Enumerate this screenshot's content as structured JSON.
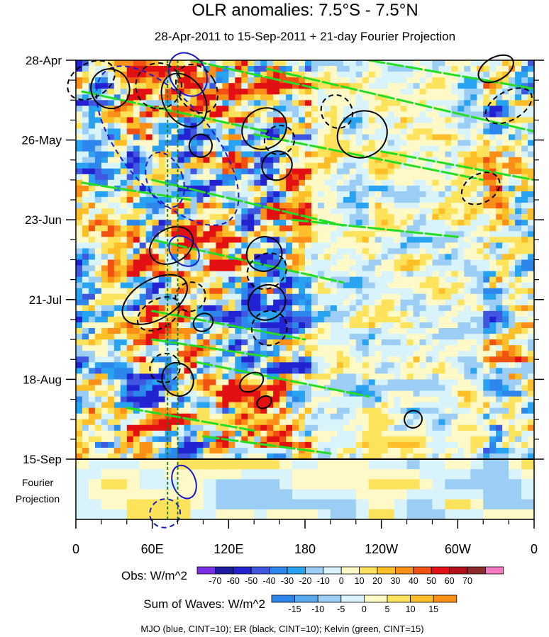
{
  "chart_data": {
    "type": "heatmap",
    "title": "OLR anomalies: 7.5°S - 7.5°N",
    "subtitle": "28-Apr-2011 to 15-Sep-2011 + 21-day Fourier Projection",
    "y_tick_labels": [
      "28-Apr",
      "26-May",
      "23-Jun",
      "21-Jul",
      "18-Aug",
      "15-Sep"
    ],
    "y_days_from_start": [
      0,
      28,
      56,
      84,
      112,
      140
    ],
    "projection_days": 21,
    "projection_label": [
      "Fourier",
      "Projection"
    ],
    "x_tick_labels": [
      "0",
      "60E",
      "120E",
      "180",
      "120W",
      "60W",
      "0"
    ],
    "x_longitudes": [
      0,
      60,
      120,
      180,
      240,
      300,
      360
    ],
    "xlim": [
      0,
      360
    ],
    "reference_longitudes": [
      72,
      80
    ],
    "obs_colorbar": {
      "label": "Obs: W/m^2",
      "levels": [
        "-70",
        "-60",
        "-50",
        "-40",
        "-30",
        "-20",
        "-10",
        "0",
        "10",
        "20",
        "30",
        "40",
        "50",
        "60",
        "70"
      ],
      "colors": [
        "#7b2ee6",
        "#1d1ba0",
        "#2222d2",
        "#3f57e0",
        "#2d86ec",
        "#27a3f1",
        "#9ccdf4",
        "#d8f3fa",
        "#fff9c8",
        "#fde35c",
        "#fdbe28",
        "#fb8f18",
        "#f25111",
        "#e31013",
        "#b3101a",
        "#8c2b2b",
        "#f37ac0"
      ]
    },
    "waves_colorbar": {
      "label": "Sum of Waves: W/m^2",
      "levels": [
        "-15",
        "-10",
        "-5",
        "0",
        "5",
        "10",
        "15"
      ],
      "colors": [
        "#2d86ec",
        "#5aaaf0",
        "#9ccdf4",
        "#d8f3fa",
        "#fff9c8",
        "#fde35c",
        "#fdbe28",
        "#fb8f18"
      ]
    },
    "footnote": "MJO (blue, CINT=10); ER (black, CINT=10); Kelvin (green, CINT=15)",
    "series": [
      {
        "name": "MJO",
        "color": "#1a1acc",
        "contour_interval": 10
      },
      {
        "name": "ER",
        "color": "#000000",
        "contour_interval": 10
      },
      {
        "name": "Kelvin",
        "color": "#22dd22",
        "contour_interval": 15
      }
    ],
    "contours": [
      {
        "wave": "MJO",
        "sign": "neg",
        "lon": 72,
        "day": 30,
        "rlon": 35,
        "rday": 34,
        "angle": -10
      },
      {
        "wave": "MJO",
        "sign": "pos",
        "lon": 88,
        "day": 5,
        "rlon": 14,
        "rday": 8,
        "angle": 0
      },
      {
        "wave": "MJO",
        "sign": "pos",
        "lon": 85,
        "day": 67,
        "rlon": 10,
        "rday": 6,
        "angle": -15
      },
      {
        "wave": "MJO",
        "sign": "neg",
        "lon": 70,
        "day": 42,
        "rlon": 14,
        "rday": 10,
        "angle": 10
      },
      {
        "wave": "MJO",
        "sign": "pos",
        "lon": 85,
        "day": 148,
        "rlon": 9,
        "rday": 6,
        "angle": 10
      },
      {
        "wave": "MJO",
        "sign": "neg",
        "lon": 70,
        "day": 159,
        "rlon": 12,
        "rday": 5,
        "angle": 15
      },
      {
        "wave": "ER",
        "sign": "neg",
        "lon": 12,
        "day": 7,
        "rlon": 20,
        "rday": 6,
        "angle": 0
      },
      {
        "wave": "ER",
        "sign": "pos",
        "lon": 27,
        "day": 10,
        "rlon": 15,
        "rday": 7,
        "angle": 0
      },
      {
        "wave": "ER",
        "sign": "neg",
        "lon": 65,
        "day": 9,
        "rlon": 18,
        "rday": 8,
        "angle": 0
      },
      {
        "wave": "ER",
        "sign": "pos",
        "lon": 85,
        "day": 14,
        "rlon": 16,
        "rday": 10,
        "angle": 0
      },
      {
        "wave": "ER",
        "sign": "neg",
        "lon": 95,
        "day": 10,
        "rlon": 15,
        "rday": 9,
        "angle": 0
      },
      {
        "wave": "ER",
        "sign": "pos",
        "lon": 148,
        "day": 24,
        "rlon": 18,
        "rday": 7,
        "angle": 0
      },
      {
        "wave": "ER",
        "sign": "neg",
        "lon": 160,
        "day": 28,
        "rlon": 12,
        "rday": 5,
        "angle": 0
      },
      {
        "wave": "ER",
        "sign": "pos",
        "lon": 158,
        "day": 37,
        "rlon": 12,
        "rday": 5,
        "angle": 0
      },
      {
        "wave": "ER",
        "sign": "neg",
        "lon": 205,
        "day": 18,
        "rlon": 12,
        "rday": 6,
        "angle": 0
      },
      {
        "wave": "ER",
        "sign": "pos",
        "lon": 225,
        "day": 26,
        "rlon": 20,
        "rday": 8,
        "angle": 0
      },
      {
        "wave": "ER",
        "sign": "neg",
        "lon": 340,
        "day": 16,
        "rlon": 20,
        "rday": 5,
        "angle": 0
      },
      {
        "wave": "ER",
        "sign": "pos",
        "lon": 330,
        "day": 3,
        "rlon": 15,
        "rday": 4,
        "angle": 0
      },
      {
        "wave": "ER",
        "sign": "neg",
        "lon": 318,
        "day": 45,
        "rlon": 16,
        "rday": 5,
        "angle": 0
      },
      {
        "wave": "ER",
        "sign": "pos",
        "lon": 98,
        "day": 30,
        "rlon": 9,
        "rday": 4,
        "angle": 0
      },
      {
        "wave": "ER",
        "sign": "pos",
        "lon": 75,
        "day": 65,
        "rlon": 18,
        "rday": 6,
        "angle": 0
      },
      {
        "wave": "ER",
        "sign": "pos",
        "lon": 62,
        "day": 84,
        "rlon": 28,
        "rday": 7,
        "angle": 0
      },
      {
        "wave": "ER",
        "sign": "neg",
        "lon": 65,
        "day": 89,
        "rlon": 18,
        "rday": 5,
        "angle": 0
      },
      {
        "wave": "ER",
        "sign": "neg",
        "lon": 90,
        "day": 83,
        "rlon": 12,
        "rday": 5,
        "angle": 0
      },
      {
        "wave": "ER",
        "sign": "pos",
        "lon": 100,
        "day": 92,
        "rlon": 8,
        "rday": 3,
        "angle": 0
      },
      {
        "wave": "ER",
        "sign": "pos",
        "lon": 148,
        "day": 68,
        "rlon": 14,
        "rday": 6,
        "angle": 0
      },
      {
        "wave": "ER",
        "sign": "neg",
        "lon": 150,
        "day": 74,
        "rlon": 16,
        "rday": 6,
        "angle": 0
      },
      {
        "wave": "ER",
        "sign": "pos",
        "lon": 150,
        "day": 85,
        "rlon": 15,
        "rday": 6,
        "angle": 0
      },
      {
        "wave": "ER",
        "sign": "neg",
        "lon": 152,
        "day": 94,
        "rlon": 14,
        "rday": 6,
        "angle": 0
      },
      {
        "wave": "ER",
        "sign": "neg",
        "lon": 70,
        "day": 108,
        "rlon": 12,
        "rday": 5,
        "angle": 0
      },
      {
        "wave": "ER",
        "sign": "pos",
        "lon": 80,
        "day": 112,
        "rlon": 12,
        "rday": 6,
        "angle": 0
      },
      {
        "wave": "ER",
        "sign": "pos",
        "lon": 138,
        "day": 113,
        "rlon": 10,
        "rday": 3,
        "angle": 0
      },
      {
        "wave": "ER",
        "sign": "pos",
        "lon": 148,
        "day": 120,
        "rlon": 6,
        "rday": 2,
        "angle": 0
      },
      {
        "wave": "ER",
        "sign": "pos",
        "lon": 265,
        "day": 126,
        "rlon": 7,
        "rday": 3,
        "angle": 0
      }
    ],
    "kelvin_bands": [
      {
        "lon0": 90,
        "day0": 0,
        "lon1": 190,
        "day1": 10
      },
      {
        "lon0": 5,
        "day0": 11,
        "lon1": 150,
        "day1": 25
      },
      {
        "lon0": 140,
        "day0": 26,
        "lon1": 320,
        "day1": 42
      },
      {
        "lon0": 60,
        "day0": 42,
        "lon1": 210,
        "day1": 58
      },
      {
        "lon0": 5,
        "day0": 43,
        "lon1": 90,
        "day1": 49
      },
      {
        "lon0": 230,
        "day0": 0,
        "lon1": 360,
        "day1": 10
      },
      {
        "lon0": 150,
        "day0": 3,
        "lon1": 360,
        "day1": 25
      },
      {
        "lon0": 240,
        "day0": 32,
        "lon1": 360,
        "day1": 42
      },
      {
        "lon0": 170,
        "day0": 56,
        "lon1": 300,
        "day1": 62
      },
      {
        "lon0": 60,
        "day0": 63,
        "lon1": 210,
        "day1": 78
      },
      {
        "lon0": 60,
        "day0": 88,
        "lon1": 180,
        "day1": 98
      },
      {
        "lon0": 60,
        "day0": 98,
        "lon1": 150,
        "day1": 104
      },
      {
        "lon0": 95,
        "day0": 106,
        "lon1": 230,
        "day1": 118
      },
      {
        "lon0": 40,
        "day0": 122,
        "lon1": 140,
        "day1": 130
      },
      {
        "lon0": 100,
        "day0": 132,
        "lon1": 200,
        "day1": 138
      }
    ]
  }
}
